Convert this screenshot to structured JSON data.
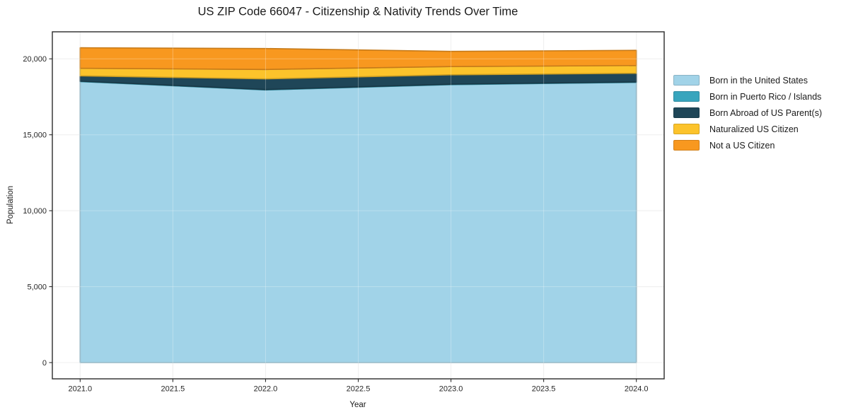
{
  "chart_data": {
    "type": "area",
    "stacked": true,
    "title": "US ZIP Code 66047 - Citizenship & Nativity Trends Over Time",
    "xlabel": "Year",
    "ylabel": "Population",
    "x": [
      2021,
      2022,
      2023,
      2024
    ],
    "series": [
      {
        "name": "Born in the United States",
        "color": "#a1d3e8",
        "values": [
          18500,
          17950,
          18300,
          18450
        ]
      },
      {
        "name": "Born in Puerto Rico / Islands",
        "color": "#38a5bd",
        "values": [
          30,
          30,
          30,
          30
        ]
      },
      {
        "name": "Born Abroad of US Parent(s)",
        "color": "#1f4658",
        "values": [
          350,
          700,
          620,
          570
        ]
      },
      {
        "name": "Naturalized US Citizen",
        "color": "#fcc32b",
        "values": [
          500,
          620,
          540,
          510
        ]
      },
      {
        "name": "Not a US Citizen",
        "color": "#f8981f",
        "values": [
          1350,
          1380,
          1000,
          1000
        ]
      }
    ],
    "totals": [
      20730,
      20680,
      20490,
      20560
    ],
    "xtick_labels": [
      "2021.0",
      "2021.5",
      "2022.0",
      "2022.5",
      "2023.0",
      "2023.5",
      "2024.0"
    ],
    "xtick_values": [
      2021,
      2021.5,
      2022,
      2022.5,
      2023,
      2023.5,
      2024
    ],
    "ytick_labels": [
      "0",
      "5,000",
      "10,000",
      "15,000",
      "20,000"
    ],
    "ytick_values": [
      0,
      5000,
      10000,
      15000,
      20000
    ],
    "xlim": [
      2020.85,
      2024.15
    ],
    "ylim": [
      -1070,
      21780
    ],
    "grid": true,
    "legend_position": "right",
    "frame_color": "#2a2a2a",
    "gridline_color": "#e9e9e9"
  }
}
